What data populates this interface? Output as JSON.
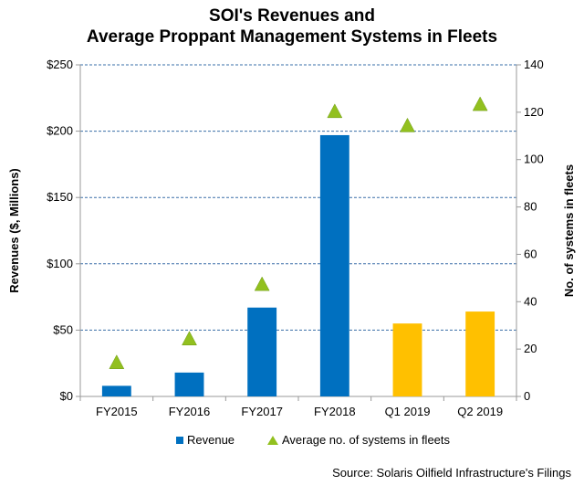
{
  "title_line1": "SOI's Revenues and",
  "title_line2": "Average Proppant Management Systems in Fleets",
  "source": "Source:  Solaris Oilfield Infrastructure's  Filings",
  "colors": {
    "revenue_actual": "#0070C0",
    "revenue_quarter": "#FFC000",
    "systems": "#92C01F",
    "grid": "#3A6FA8"
  },
  "chart_data": {
    "type": "bar",
    "categories": [
      "FY2015",
      "FY2016",
      "FY2017",
      "FY2018",
      "Q1 2019",
      "Q2 2019"
    ],
    "series": [
      {
        "name": "Revenue",
        "axis": "left",
        "values": [
          8,
          18,
          67,
          197,
          55,
          64
        ],
        "colors": [
          "#0070C0",
          "#0070C0",
          "#0070C0",
          "#0070C0",
          "#FFC000",
          "#FFC000"
        ]
      },
      {
        "name": "Average no. of systems in fleets",
        "axis": "right",
        "marker": "triangle",
        "values": [
          14,
          24,
          47,
          120,
          114,
          123
        ]
      }
    ],
    "ylabel": "Revenues ($, Millions)",
    "y2label": "No. of systems in fleets",
    "ylim": [
      0,
      250
    ],
    "y2lim": [
      0,
      140
    ],
    "yticks": [
      "$0",
      "$50",
      "$100",
      "$150",
      "$200",
      "$250"
    ],
    "y2ticks": [
      "0",
      "20",
      "40",
      "60",
      "80",
      "100",
      "120",
      "140"
    ],
    "grid": true,
    "legend_position": "bottom"
  }
}
